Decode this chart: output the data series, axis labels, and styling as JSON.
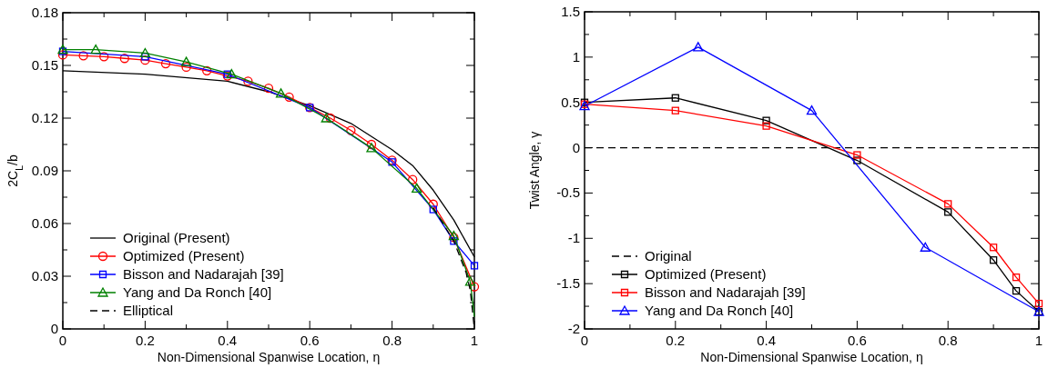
{
  "chart_data": [
    {
      "type": "line",
      "xlabel": "Non-Dimensional Spanwise Location, η",
      "ylabel": "2C$_{L}$/b",
      "xlim": [
        0,
        1
      ],
      "ylim": [
        0,
        0.18
      ],
      "xticks": [
        0,
        {
          "value": 0.1,
          "label": null
        },
        0.2,
        {
          "value": 0.3,
          "label": null
        },
        0.4,
        {
          "value": 0.5,
          "label": null
        },
        0.6,
        {
          "value": 0.7,
          "label": null
        },
        0.8,
        {
          "value": 0.9,
          "label": null
        },
        1
      ],
      "yticks": [
        0,
        {
          "value": 0.015,
          "label": null
        },
        0.03,
        {
          "value": 0.045,
          "label": null
        },
        0.06,
        {
          "value": 0.075,
          "label": null
        },
        0.09,
        {
          "value": 0.105,
          "label": null
        },
        0.12,
        {
          "value": 0.135,
          "label": null
        },
        0.15,
        {
          "value": 0.165,
          "label": null
        },
        0.18
      ],
      "grid": false,
      "legend": "bottom left",
      "series": [
        {
          "name": "Original (Present)",
          "color": "#000000",
          "marker": "none",
          "line_style": "solid",
          "x": [
            0,
            0.2,
            0.4,
            0.5,
            0.6,
            0.7,
            0.8,
            0.85,
            0.9,
            0.95,
            1
          ],
          "values": [
            0.147,
            0.145,
            0.141,
            0.135,
            0.127,
            0.117,
            0.102,
            0.093,
            0.079,
            0.062,
            0.041
          ]
        },
        {
          "name": "Optimized (Present)",
          "color": "#ff0000",
          "marker": "circle",
          "line_style": "solid",
          "x": [
            0,
            0.05,
            0.1,
            0.15,
            0.2,
            0.25,
            0.3,
            0.35,
            0.4,
            0.45,
            0.5,
            0.55,
            0.6,
            0.65,
            0.7,
            0.75,
            0.8,
            0.85,
            0.9,
            0.95,
            1
          ],
          "values": [
            0.156,
            0.1555,
            0.155,
            0.154,
            0.153,
            0.151,
            0.149,
            0.147,
            0.144,
            0.141,
            0.137,
            0.132,
            0.126,
            0.12,
            0.113,
            0.105,
            0.096,
            0.085,
            0.071,
            0.052,
            0.024
          ]
        },
        {
          "name": "Bisson and Nadarajah [39]",
          "color": "#0000ff",
          "marker": "square",
          "line_style": "solid",
          "x": [
            0,
            0.2,
            0.4,
            0.6,
            0.8,
            0.9,
            0.95,
            1
          ],
          "values": [
            0.158,
            0.155,
            0.145,
            0.126,
            0.095,
            0.068,
            0.05,
            0.036
          ]
        },
        {
          "name": "Yang and Da Ronch [40]",
          "color": "#008000",
          "marker": "triangle",
          "line_style": "solid",
          "x": [
            0,
            0.08,
            0.2,
            0.3,
            0.41,
            0.53,
            0.64,
            0.75,
            0.86,
            0.95,
            0.99
          ],
          "values": [
            0.159,
            0.159,
            0.157,
            0.152,
            0.145,
            0.134,
            0.12,
            0.103,
            0.08,
            0.053,
            0.027
          ]
        },
        {
          "color": "#008000",
          "marker": "none",
          "line_style": "solid",
          "x": [
            0.99,
            1
          ],
          "values": [
            0.027,
            0.007
          ]
        },
        {
          "name": "Elliptical",
          "color": "#000000",
          "marker": "none",
          "line_style": "dashed",
          "x": [
            0.9,
            0.95,
            0.98,
            0.99,
            1
          ],
          "values": [
            0.069,
            0.05,
            0.032,
            0.022,
            0
          ]
        }
      ]
    },
    {
      "type": "line",
      "xlabel": "Non-Dimensional Spanwise Location, η",
      "ylabel": "Twist Angle, γ",
      "xlim": [
        0,
        1
      ],
      "ylim": [
        -2,
        1.5
      ],
      "xticks": [
        0,
        {
          "value": 0.1,
          "label": null
        },
        0.2,
        {
          "value": 0.3,
          "label": null
        },
        0.4,
        {
          "value": 0.5,
          "label": null
        },
        0.6,
        {
          "value": 0.7,
          "label": null
        },
        0.8,
        {
          "value": 0.9,
          "label": null
        },
        1
      ],
      "yticks": [
        -2,
        {
          "value": -1.75,
          "label": null
        },
        -1.5,
        {
          "value": -1.25,
          "label": null
        },
        -1,
        {
          "value": -0.75,
          "label": null
        },
        -0.5,
        {
          "value": -0.25,
          "label": null
        },
        0,
        {
          "value": 0.25,
          "label": null
        },
        0.5,
        {
          "value": 0.75,
          "label": null
        },
        1,
        {
          "value": 1.25,
          "label": null
        },
        1.5
      ],
      "grid": false,
      "legend": "bottom left",
      "series": [
        {
          "name": "Original",
          "color": "#000000",
          "marker": "none",
          "line_style": "dashed",
          "x": [
            0,
            1
          ],
          "values": [
            0,
            0
          ]
        },
        {
          "name": "Optimized (Present)",
          "color": "#000000",
          "marker": "square",
          "line_style": "solid",
          "x": [
            0,
            0.2,
            0.4,
            0.6,
            0.8,
            0.9,
            0.95,
            1
          ],
          "values": [
            0.5,
            0.55,
            0.3,
            -0.14,
            -0.71,
            -1.24,
            -1.58,
            -1.81
          ]
        },
        {
          "name": "Bisson and Nadarajah [39]",
          "color": "#ff0000",
          "marker": "square",
          "line_style": "solid",
          "x": [
            0,
            0.2,
            0.4,
            0.6,
            0.8,
            0.9,
            0.95,
            1
          ],
          "values": [
            0.48,
            0.41,
            0.24,
            -0.08,
            -0.62,
            -1.1,
            -1.43,
            -1.72
          ]
        },
        {
          "name": "Yang and Da Ronch [40]",
          "color": "#0000ff",
          "marker": "triangle",
          "line_style": "solid",
          "x": [
            0,
            0.25,
            0.5,
            0.75,
            1
          ],
          "values": [
            0.46,
            1.11,
            0.41,
            -1.1,
            -1.81
          ]
        }
      ]
    }
  ]
}
